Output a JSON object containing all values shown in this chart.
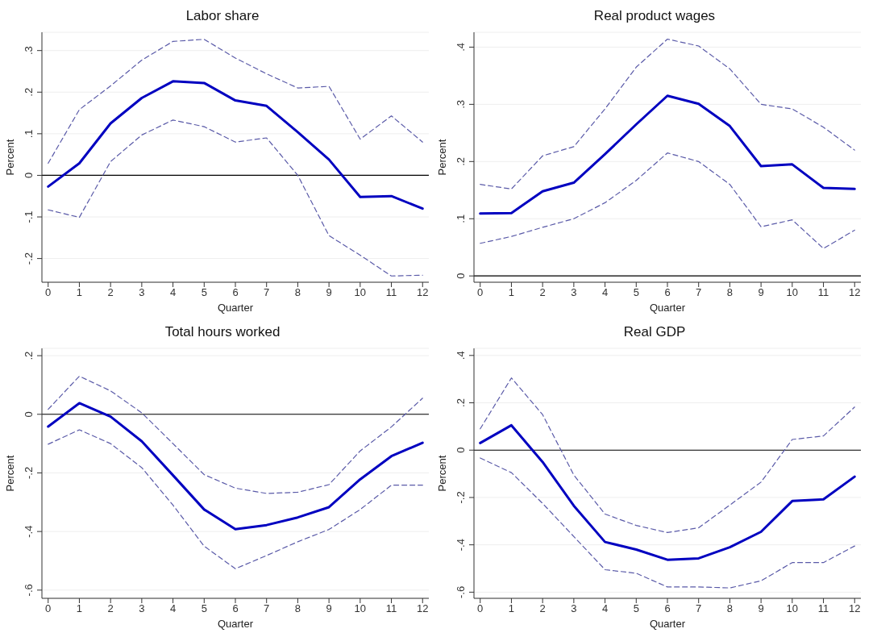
{
  "chart_data": [
    {
      "type": "line",
      "title": "Labor share",
      "xlabel": "Quarter",
      "ylabel": "Percent",
      "x": [
        0,
        1,
        2,
        3,
        4,
        5,
        6,
        7,
        8,
        9,
        10,
        11,
        12
      ],
      "xlim": [
        -0.2,
        12.2
      ],
      "xticks": [
        0,
        1,
        2,
        3,
        4,
        5,
        6,
        7,
        8,
        9,
        10,
        11,
        12
      ],
      "ylim": [
        -0.257,
        0.344
      ],
      "yticks": [
        {
          "value": -0.2,
          "label": "-.2"
        },
        {
          "value": -0.1,
          "label": "-.1"
        },
        {
          "value": 0,
          "label": "0"
        },
        {
          "value": 0.1,
          "label": ".1"
        },
        {
          "value": 0.2,
          "label": ".2"
        },
        {
          "value": 0.3,
          "label": ".3"
        }
      ],
      "grid": "y",
      "marker": "none",
      "ref_lines": [
        {
          "axis": "y",
          "value": 0,
          "color": "#000000"
        }
      ],
      "series": [
        {
          "color": "#5a5aa8",
          "line_style": "dashed",
          "values": [
            0.029,
            0.158,
            0.215,
            0.277,
            0.322,
            0.327,
            0.282,
            0.244,
            0.21,
            0.214,
            0.087,
            0.143,
            0.08
          ]
        },
        {
          "color": "#0000c0",
          "line_style": "solid",
          "values": [
            -0.027,
            0.029,
            0.125,
            0.186,
            0.226,
            0.222,
            0.18,
            0.167,
            0.104,
            0.038,
            -0.052,
            -0.05,
            -0.08
          ]
        },
        {
          "color": "#5a5aa8",
          "line_style": "dashed",
          "values": [
            -0.083,
            -0.101,
            0.033,
            0.097,
            0.133,
            0.117,
            0.08,
            0.09,
            0.0,
            -0.145,
            -0.192,
            -0.242,
            -0.24
          ]
        }
      ]
    },
    {
      "type": "line",
      "title": "Real product wages",
      "xlabel": "Quarter",
      "ylabel": "Percent",
      "x": [
        0,
        1,
        2,
        3,
        4,
        5,
        6,
        7,
        8,
        9,
        10,
        11,
        12
      ],
      "xlim": [
        -0.2,
        12.2
      ],
      "xticks": [
        0,
        1,
        2,
        3,
        4,
        5,
        6,
        7,
        8,
        9,
        10,
        11,
        12
      ],
      "ylim": [
        -0.011,
        0.426
      ],
      "yticks": [
        {
          "value": 0,
          "label": "0"
        },
        {
          "value": 0.1,
          "label": ".1"
        },
        {
          "value": 0.2,
          "label": ".2"
        },
        {
          "value": 0.3,
          "label": ".3"
        },
        {
          "value": 0.4,
          "label": ".4"
        }
      ],
      "grid": "y",
      "marker": "none",
      "ref_lines": [
        {
          "axis": "y",
          "value": 0,
          "color": "#000000"
        }
      ],
      "series": [
        {
          "color": "#5a5aa8",
          "line_style": "dashed",
          "values": [
            0.16,
            0.152,
            0.21,
            0.226,
            0.292,
            0.365,
            0.414,
            0.402,
            0.362,
            0.3,
            0.292,
            0.26,
            0.22
          ]
        },
        {
          "color": "#0000c0",
          "line_style": "solid",
          "values": [
            0.109,
            0.11,
            0.148,
            0.163,
            0.213,
            0.265,
            0.315,
            0.301,
            0.262,
            0.192,
            0.195,
            0.154,
            0.152
          ]
        },
        {
          "color": "#5a5aa8",
          "line_style": "dashed",
          "values": [
            0.057,
            0.069,
            0.085,
            0.1,
            0.128,
            0.167,
            0.215,
            0.2,
            0.16,
            0.086,
            0.098,
            0.048,
            0.08
          ]
        }
      ]
    },
    {
      "type": "line",
      "title": "Total hours worked",
      "xlabel": "Quarter",
      "ylabel": "Percent",
      "x": [
        0,
        1,
        2,
        3,
        4,
        5,
        6,
        7,
        8,
        9,
        10,
        11,
        12
      ],
      "xlim": [
        -0.2,
        12.2
      ],
      "xticks": [
        0,
        1,
        2,
        3,
        4,
        5,
        6,
        7,
        8,
        9,
        10,
        11,
        12
      ],
      "ylim": [
        -0.628,
        0.225
      ],
      "yticks": [
        {
          "value": -0.6,
          "label": "-.6"
        },
        {
          "value": -0.4,
          "label": "-.4"
        },
        {
          "value": -0.2,
          "label": "-.2"
        },
        {
          "value": 0,
          "label": "0"
        },
        {
          "value": 0.2,
          "label": ".2"
        }
      ],
      "grid": "y",
      "marker": "none",
      "ref_lines": [
        {
          "axis": "y",
          "value": 0,
          "color": "#000000"
        }
      ],
      "series": [
        {
          "color": "#5a5aa8",
          "line_style": "dashed",
          "values": [
            0.017,
            0.13,
            0.08,
            0.005,
            -0.1,
            -0.206,
            -0.252,
            -0.27,
            -0.266,
            -0.24,
            -0.125,
            -0.043,
            0.055
          ]
        },
        {
          "color": "#0000c0",
          "line_style": "solid",
          "values": [
            -0.042,
            0.038,
            -0.008,
            -0.092,
            -0.208,
            -0.325,
            -0.392,
            -0.378,
            -0.352,
            -0.317,
            -0.222,
            -0.143,
            -0.097
          ]
        },
        {
          "color": "#5a5aa8",
          "line_style": "dashed",
          "values": [
            -0.102,
            -0.053,
            -0.1,
            -0.182,
            -0.31,
            -0.45,
            -0.527,
            -0.482,
            -0.435,
            -0.393,
            -0.325,
            -0.242,
            -0.242
          ]
        }
      ]
    },
    {
      "type": "line",
      "title": "Real GDP",
      "xlabel": "Quarter",
      "ylabel": "Percent",
      "x": [
        0,
        1,
        2,
        3,
        4,
        5,
        6,
        7,
        8,
        9,
        10,
        11,
        12
      ],
      "xlim": [
        -0.2,
        12.2
      ],
      "xticks": [
        0,
        1,
        2,
        3,
        4,
        5,
        6,
        7,
        8,
        9,
        10,
        11,
        12
      ],
      "ylim": [
        -0.626,
        0.43
      ],
      "yticks": [
        {
          "value": -0.6,
          "label": "-.6"
        },
        {
          "value": -0.4,
          "label": "-.4"
        },
        {
          "value": -0.2,
          "label": "-.2"
        },
        {
          "value": 0,
          "label": "0"
        },
        {
          "value": 0.2,
          "label": ".2"
        },
        {
          "value": 0.4,
          "label": ".4"
        }
      ],
      "grid": "y",
      "marker": "none",
      "ref_lines": [
        {
          "axis": "y",
          "value": 0,
          "color": "#000000"
        }
      ],
      "series": [
        {
          "color": "#5a5aa8",
          "line_style": "dashed",
          "values": [
            0.09,
            0.305,
            0.15,
            -0.105,
            -0.27,
            -0.318,
            -0.348,
            -0.328,
            -0.232,
            -0.135,
            0.045,
            0.06,
            0.182
          ]
        },
        {
          "color": "#0000c0",
          "line_style": "solid",
          "values": [
            0.03,
            0.105,
            -0.05,
            -0.235,
            -0.388,
            -0.42,
            -0.463,
            -0.457,
            -0.41,
            -0.345,
            -0.215,
            -0.208,
            -0.112
          ]
        },
        {
          "color": "#5a5aa8",
          "line_style": "dashed",
          "values": [
            -0.033,
            -0.095,
            -0.225,
            -0.365,
            -0.505,
            -0.52,
            -0.578,
            -0.578,
            -0.582,
            -0.552,
            -0.475,
            -0.475,
            -0.405
          ]
        }
      ]
    }
  ]
}
